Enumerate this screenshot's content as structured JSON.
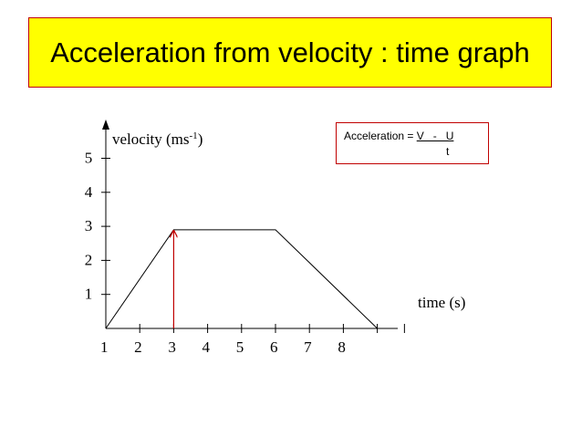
{
  "title": "Acceleration from velocity : time graph",
  "formula": {
    "prefix": "Acceleration = ",
    "numerator": "V   -   U",
    "denominator": "t"
  },
  "chart_data": {
    "type": "line",
    "ylabel_main": "velocity (ms",
    "ylabel_sup": "-1",
    "ylabel_close": ")",
    "xlabel": "time (s)",
    "xlim": [
      0,
      9
    ],
    "ylim": [
      0,
      5
    ],
    "x_ticks": [
      1,
      2,
      3,
      4,
      5,
      6,
      7,
      8
    ],
    "y_ticks": [
      1,
      2,
      3,
      4,
      5
    ],
    "series": [
      {
        "x": [
          0,
          2,
          5,
          8
        ],
        "y": [
          0,
          2.9,
          2.9,
          0
        ]
      }
    ],
    "arrow": {
      "x": 2,
      "y_from": 0,
      "y_to": 2.9,
      "color": "#c00000"
    },
    "grid": false
  }
}
